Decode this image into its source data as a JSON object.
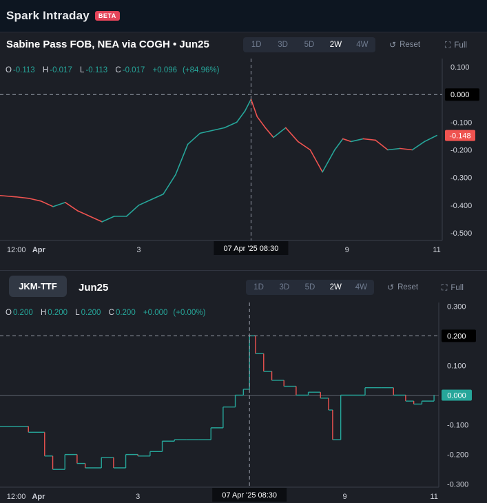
{
  "app": {
    "title": "Spark Intraday",
    "badge": "BETA"
  },
  "timeframes": [
    "1D",
    "3D",
    "5D",
    "2W",
    "4W"
  ],
  "active_timeframe": "2W",
  "actions": {
    "reset": "Reset",
    "full": "Full"
  },
  "icons": {
    "reset": "reset-icon",
    "full": "fullscreen-icon"
  },
  "colors": {
    "up": "#26a69a",
    "down": "#ef5350",
    "background": "#1c1f26"
  },
  "crosshair_label": "07 Apr '25   08:30",
  "panel1": {
    "title": "Sabine Pass FOB, NEA via COGH  •  Jun25",
    "ohlc": {
      "o": "-0.113",
      "h": "-0.017",
      "l": "-0.113",
      "c": "-0.017",
      "change": "+0.096",
      "pct": "(+84.96%)"
    }
  },
  "panel2": {
    "chip": "JKM-TTF",
    "title": "Jun25",
    "ohlc": {
      "o": "0.200",
      "h": "0.200",
      "l": "0.200",
      "c": "0.200",
      "change": "+0.000",
      "pct": "(+0.00%)"
    }
  },
  "chart_data": [
    {
      "type": "candlestick",
      "title": "Sabine Pass FOB, NEA via COGH • Jun25",
      "ylim": [
        -0.52,
        0.12
      ],
      "yticks": [
        0.1,
        0.0,
        -0.1,
        -0.2,
        -0.3,
        -0.4,
        -0.5
      ],
      "ytick_labels": [
        "0.100",
        "0.000",
        "-0.100",
        "-0.200",
        "-0.300",
        "-0.400",
        "-0.500"
      ],
      "xticks": [
        {
          "x": 0.0,
          "label": "12:00"
        },
        {
          "x": 0.55,
          "label": "Apr"
        },
        {
          "x": 3.0,
          "label": "3"
        },
        {
          "x": 8.1,
          "label": "9"
        },
        {
          "x": 10.3,
          "label": "11"
        }
      ],
      "xlim": [
        -0.4,
        10.4
      ],
      "crosshair": {
        "x": 5.75,
        "y": 0.0
      },
      "last_value": {
        "value": -0.148,
        "label": "-0.148"
      },
      "series": [
        {
          "x": [
            -0.4,
            0.0,
            0.3,
            0.6,
            0.9,
            1.2,
            1.5,
            1.8,
            2.1,
            2.4,
            2.7,
            3.0,
            3.3,
            3.6,
            3.9,
            4.2,
            4.5,
            4.8,
            5.1,
            5.4,
            5.6,
            5.75,
            5.9,
            6.1,
            6.3,
            6.6,
            6.9,
            7.2,
            7.5,
            7.8,
            8.0,
            8.2,
            8.5,
            8.8,
            9.1,
            9.4,
            9.7,
            10.0,
            10.3
          ],
          "close": [
            -0.365,
            -0.37,
            -0.375,
            -0.385,
            -0.405,
            -0.39,
            -0.42,
            -0.44,
            -0.46,
            -0.44,
            -0.44,
            -0.4,
            -0.38,
            -0.36,
            -0.29,
            -0.18,
            -0.14,
            -0.13,
            -0.12,
            -0.1,
            -0.06,
            -0.017,
            -0.08,
            -0.12,
            -0.155,
            -0.12,
            -0.17,
            -0.2,
            -0.28,
            -0.2,
            -0.16,
            -0.17,
            -0.16,
            -0.165,
            -0.2,
            -0.195,
            -0.2,
            -0.17,
            -0.148
          ]
        }
      ]
    },
    {
      "type": "step",
      "title": "JKM-TTF Jun25",
      "ylim": [
        -0.31,
        0.31
      ],
      "yticks": [
        0.3,
        0.2,
        0.1,
        0.0,
        -0.1,
        -0.2,
        -0.3
      ],
      "ytick_labels": [
        "0.300",
        "0.200",
        "0.100",
        "0.000",
        "-0.100",
        "-0.200",
        "-0.300"
      ],
      "xticks": [
        {
          "x": 0.0,
          "label": "12:00"
        },
        {
          "x": 0.55,
          "label": "Apr"
        },
        {
          "x": 3.0,
          "label": "3"
        },
        {
          "x": 8.1,
          "label": "9"
        },
        {
          "x": 10.3,
          "label": "11"
        }
      ],
      "xlim": [
        -0.4,
        10.4
      ],
      "crosshair": {
        "x": 5.75,
        "y": 0.2
      },
      "last_value": {
        "value": 0.0,
        "label": "0.000"
      },
      "series": [
        {
          "x": [
            -0.4,
            0.3,
            0.7,
            0.9,
            1.2,
            1.5,
            1.7,
            2.1,
            2.4,
            2.7,
            3.0,
            3.3,
            3.6,
            3.9,
            4.2,
            4.5,
            4.8,
            5.1,
            5.4,
            5.6,
            5.75,
            5.9,
            6.1,
            6.3,
            6.6,
            6.9,
            7.2,
            7.5,
            7.7,
            7.8,
            8.0,
            8.3,
            8.6,
            9.0,
            9.3,
            9.6,
            9.8,
            10.0,
            10.3
          ],
          "y": [
            -0.105,
            -0.125,
            -0.205,
            -0.25,
            -0.2,
            -0.23,
            -0.245,
            -0.21,
            -0.245,
            -0.2,
            -0.205,
            -0.19,
            -0.155,
            -0.15,
            -0.15,
            -0.15,
            -0.11,
            -0.04,
            0.0,
            0.02,
            0.2,
            0.14,
            0.08,
            0.05,
            0.03,
            0.0,
            0.01,
            -0.01,
            -0.05,
            -0.15,
            0.0,
            0.0,
            0.025,
            0.025,
            0.0,
            -0.02,
            -0.03,
            -0.02,
            0.0
          ]
        }
      ]
    }
  ]
}
